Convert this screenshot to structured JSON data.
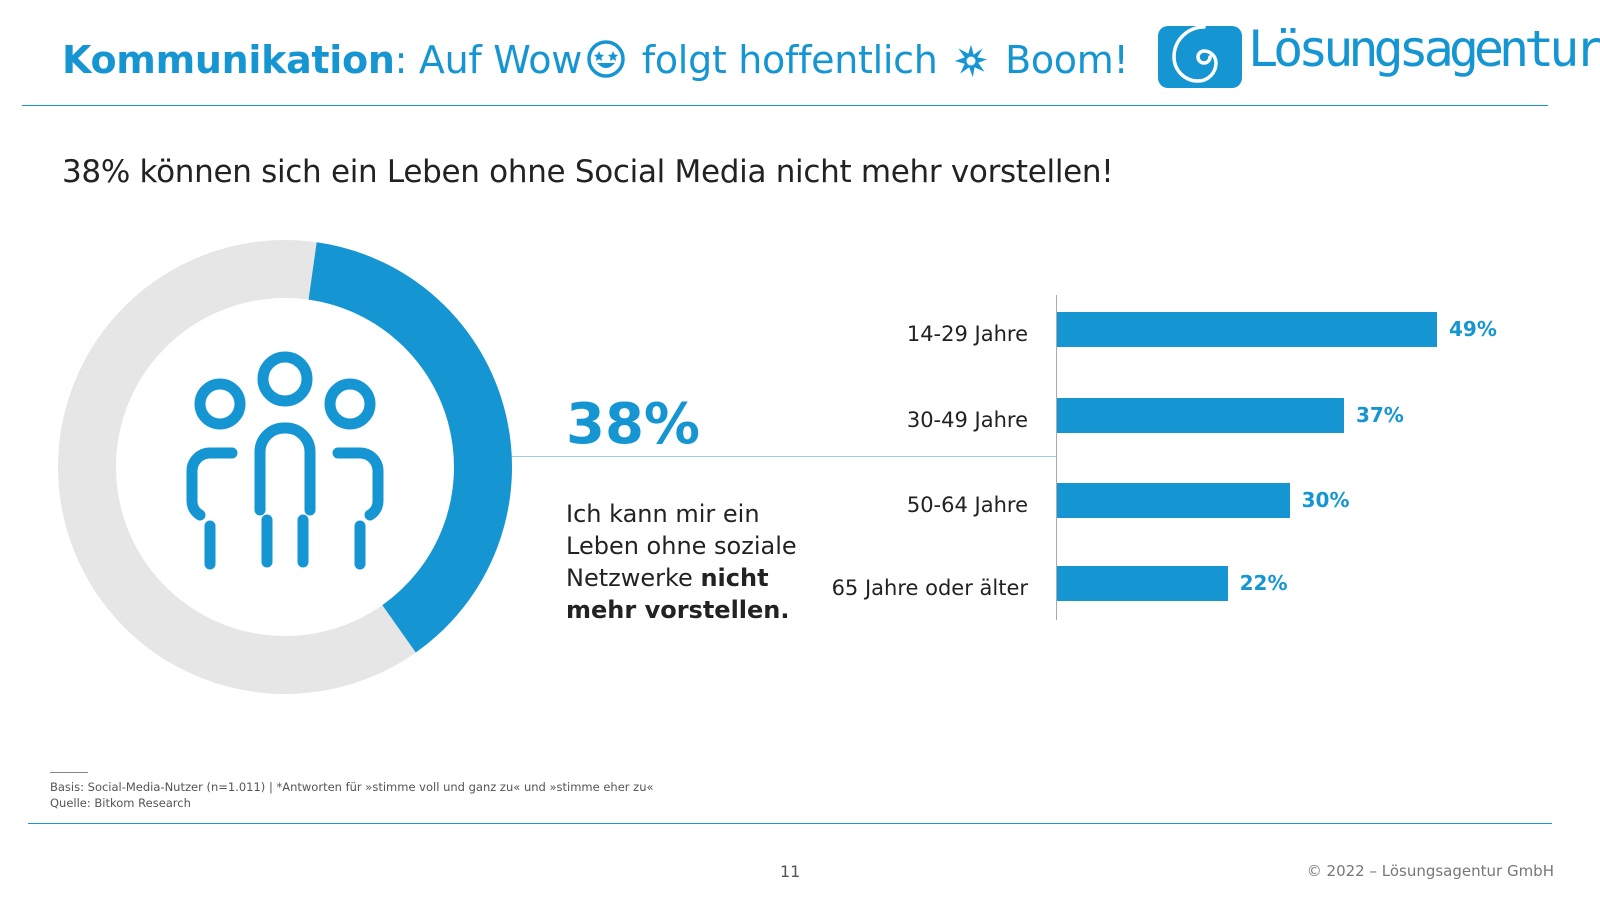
{
  "header": {
    "title_bold": "Kommunikation",
    "title_colon": ":",
    "title_part1": "Auf Wow",
    "title_part2": "folgt hoffentlich",
    "title_part3": "Boom!",
    "logo_text": "Lösungsagentur.at"
  },
  "subtitle": "38% können sich ein Leben ohne Social Media nicht mehr vorstellen!",
  "statement": {
    "big_percent": "38%",
    "text_regular": "Ich kann mir ein Leben ohne soziale Netzwerke",
    "text_bold": "nicht mehr vorstellen."
  },
  "chart_data": [
    {
      "type": "pie",
      "variant": "donut",
      "values": [
        38,
        62
      ],
      "colors": [
        "#1596d3",
        "#e6e6e6"
      ],
      "center_icon": "people-group-icon"
    },
    {
      "type": "bar",
      "orientation": "horizontal",
      "categories": [
        "14-29 Jahre",
        "30-49 Jahre",
        "50-64 Jahre",
        "65 Jahre oder älter"
      ],
      "values": [
        49,
        37,
        30,
        22
      ],
      "value_labels": [
        "49%",
        "37%",
        "30%",
        "22%"
      ],
      "xlim": [
        0,
        60
      ],
      "color": "#1596d3",
      "grid": false
    }
  ],
  "footer": {
    "basis": "Basis: Social-Media-Nutzer (n=1.011) | *Antworten für »stimme voll und ganz zu« und »stimme eher zu«",
    "source": "Quelle: Bitkom Research",
    "page_number": "11",
    "copyright": "© 2022 – Lösungsagentur GmbH"
  },
  "colors": {
    "accent": "#1596d3",
    "donut_rest": "#e6e6e6"
  }
}
